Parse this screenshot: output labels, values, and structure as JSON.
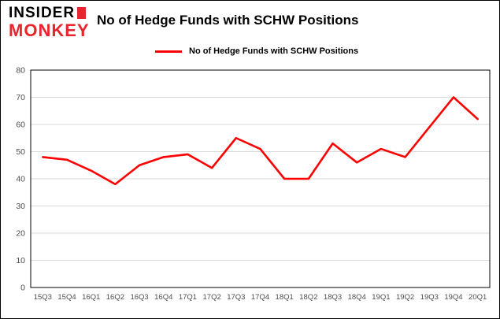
{
  "logo": {
    "line1": "INSIDER",
    "line2": "MONKEY"
  },
  "header": {
    "title": "No of Hedge Funds with SCHW Positions"
  },
  "legend": {
    "label": "No of Hedge Funds with SCHW Positions",
    "color": "#ff0000"
  },
  "chart_data": {
    "type": "line",
    "title": "No of Hedge Funds with SCHW Positions",
    "categories": [
      "15Q3",
      "15Q4",
      "16Q1",
      "16Q2",
      "16Q3",
      "16Q4",
      "17Q1",
      "17Q2",
      "17Q3",
      "17Q4",
      "18Q1",
      "18Q2",
      "18Q3",
      "18Q4",
      "19Q1",
      "19Q2",
      "19Q3",
      "19Q4",
      "20Q1"
    ],
    "values": [
      48,
      47,
      43,
      38,
      45,
      48,
      49,
      44,
      55,
      51,
      40,
      40,
      53,
      46,
      51,
      48,
      59,
      70,
      62
    ],
    "ylim": [
      0,
      80
    ],
    "yticks": [
      0,
      10,
      20,
      30,
      40,
      50,
      60,
      70,
      80
    ],
    "line_color": "#ff0000",
    "grid_color": "#d9d9d9",
    "axis_color": "#000000",
    "tick_label_color": "#4d4d4d",
    "grid": true,
    "legend_position": "top-left"
  }
}
